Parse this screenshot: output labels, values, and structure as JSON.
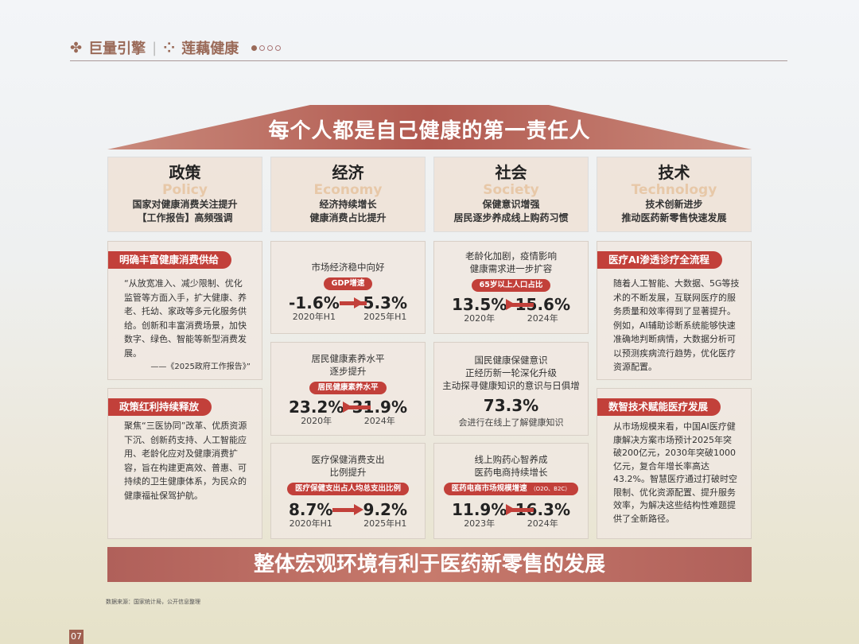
{
  "header": {
    "brand1": "巨量引擎",
    "brand2": "莲藕健康",
    "page_dots": 4,
    "active_dot": 1
  },
  "title": "每个人都是自己健康的第一责任人",
  "columns": [
    {
      "title": "政策",
      "en": "Policy",
      "sub1": "国家对健康消费关注提升",
      "sub2": "【工作报告】高频强调"
    },
    {
      "title": "经济",
      "en": "Economy",
      "sub1": "经济持续增长",
      "sub2": "健康消费占比提升"
    },
    {
      "title": "社会",
      "en": "Society",
      "sub1": "保健意识增强",
      "sub2": "居民逐步养成线上购药习惯"
    },
    {
      "title": "技术",
      "en": "Technology",
      "sub1": "技术创新进步",
      "sub2": "推动医药新零售快速发展"
    }
  ],
  "policy": [
    {
      "tag": "明确丰富健康消费供给",
      "text": "“从放宽准入、减少限制、优化监管等方面入手，扩大健康、养老、托幼、家政等多元化服务供给。创新和丰富消费场景，加快数字、绿色、智能等新型消费发展。",
      "source": "——《2025政府工作报告》”"
    },
    {
      "tag": "政策红利持续释放",
      "text": "聚焦“三医协同”改革、优质资源下沉、创新药支持、人工智能应用、老龄化应对及健康消费扩容，旨在构建更高效、普惠、可持续的卫生健康体系，为民众的健康福祉保驾护航。"
    }
  ],
  "economy": [
    {
      "caption1": "市场经济稳中向好",
      "caption2": "",
      "pill": "GDP增速",
      "from": "-1.6%",
      "from_year": "2020年H1",
      "to": "5.3%",
      "to_year": "2025年H1"
    },
    {
      "caption1": "居民健康素养水平",
      "caption2": "逐步提升",
      "pill": "居民健康素养水平",
      "from": "23.2%",
      "from_year": "2020年",
      "to": "31.9%",
      "to_year": "2024年"
    },
    {
      "caption1": "医疗保健消费支出",
      "caption2": "比例提升",
      "pill": "医疗保健支出占人均总支出比例",
      "from": "8.7%",
      "from_year": "2020年H1",
      "to": "9.2%",
      "to_year": "2025年H1"
    }
  ],
  "society": [
    {
      "caption1": "老龄化加剧，疫情影响",
      "caption2": "健康需求进一步扩容",
      "pill": "65岁以上人口占比",
      "from": "13.5%",
      "from_year": "2020年",
      "to": "15.6%",
      "to_year": "2024年"
    },
    {
      "caption1": "国民健康保健意识",
      "caption2": "正经历新一轮深化升级",
      "caption3": "主动探寻健康知识的意识与日俱增",
      "value": "73.3%",
      "note": "会进行在线上了解健康知识"
    },
    {
      "caption1": "线上购药心智养成",
      "caption2": "医药电商持续增长",
      "pill": "医药电商市场规模增速",
      "pill_note": "（O2O、B2C）",
      "from": "11.9%",
      "from_year": "2023年",
      "to": "16.3%",
      "to_year": "2024年"
    }
  ],
  "tech": [
    {
      "tag": "医疗AI渗透诊疗全流程",
      "text": "随着人工智能、大数据、5G等技术的不断发展，互联网医疗的服务质量和效率得到了显著提升。例如，AI辅助诊断系统能够快速准确地判断病情，大数据分析可以预测疾病流行趋势，优化医疗资源配置。"
    },
    {
      "tag": "数智技术赋能医疗发展",
      "text": "从市场规模来看，中国AI医疗健康解决方案市场预计2025年突破200亿元，2030年突破1000亿元，复合年增长率高达43.2%。智慧医疗通过打破时空限制、优化资源配置、提升服务效率，为解决这些结构性难题提供了全新路径。"
    }
  ],
  "banner": "整体宏观环境有利于医药新零售的发展",
  "source": "数据来源：国家统计局，公开信息整理",
  "page_number": "07",
  "colors": {
    "accent": "#c2403a",
    "roof": "#b5645a",
    "brand": "#9a6a58"
  }
}
